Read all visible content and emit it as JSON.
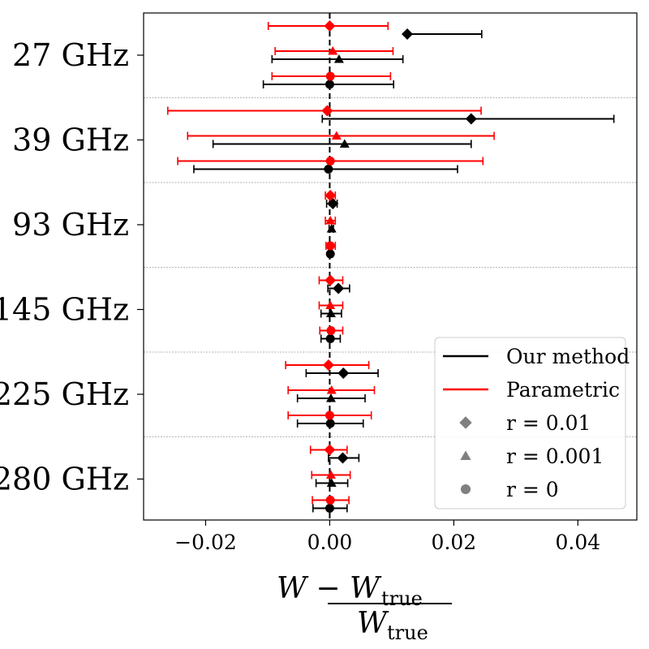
{
  "chart_data": {
    "type": "errorbar",
    "title": "",
    "xlabel": {
      "numerator": "W − W",
      "numerator_sub": "true",
      "denominator": "W",
      "denominator_sub": "true"
    },
    "xlim": [
      -0.03,
      0.0495
    ],
    "xticks": [
      -0.02,
      0.0,
      0.02,
      0.04
    ],
    "xtick_labels": [
      "−0.02",
      "0.00",
      "0.02",
      "0.04"
    ],
    "reference_line_x": 0.0,
    "categories": [
      "27 GHz",
      "39 GHz",
      "93 GHz",
      "145 GHz",
      "225 GHz",
      "280 GHz"
    ],
    "colors": {
      "our_method": "#000000",
      "parametric": "#ff0000",
      "legend_marker": "#808080"
    },
    "series": [
      {
        "name": "Our method",
        "r": "0.01",
        "marker": "diamond",
        "points": [
          {
            "value": 0.0125,
            "err_low": 0.0125,
            "err_high": 0.0245
          },
          {
            "value": 0.0228,
            "err_low": -0.0012,
            "err_high": 0.0458
          },
          {
            "value": 0.0005,
            "err_low": -0.0005,
            "err_high": 0.0012
          },
          {
            "value": 0.0014,
            "err_low": -0.0003,
            "err_high": 0.0032
          },
          {
            "value": 0.0022,
            "err_low": -0.0038,
            "err_high": 0.0078
          },
          {
            "value": 0.0021,
            "err_low": -0.0002,
            "err_high": 0.0047
          }
        ]
      },
      {
        "name": "Our method",
        "r": "0.001",
        "marker": "triangle",
        "points": [
          {
            "value": 0.0015,
            "err_low": -0.0093,
            "err_high": 0.0118
          },
          {
            "value": 0.0024,
            "err_low": -0.0188,
            "err_high": 0.0228
          },
          {
            "value": 0.0003,
            "err_low": -0.0001,
            "err_high": 0.0006
          },
          {
            "value": 0.0002,
            "err_low": -0.0014,
            "err_high": 0.0019
          },
          {
            "value": 0.0002,
            "err_low": -0.0052,
            "err_high": 0.0057
          },
          {
            "value": 0.0003,
            "err_low": -0.0022,
            "err_high": 0.0029
          }
        ]
      },
      {
        "name": "Our method",
        "r": "0",
        "marker": "circle",
        "points": [
          {
            "value": 0.0,
            "err_low": -0.0107,
            "err_high": 0.0103
          },
          {
            "value": -0.0002,
            "err_low": -0.0219,
            "err_high": 0.0206
          },
          {
            "value": 0.0001,
            "err_low": -0.0002,
            "err_high": 0.0004
          },
          {
            "value": 0.0001,
            "err_low": -0.0014,
            "err_high": 0.0017
          },
          {
            "value": 0.0001,
            "err_low": -0.0052,
            "err_high": 0.0054
          },
          {
            "value": 0.0,
            "err_low": -0.0027,
            "err_high": 0.0028
          }
        ]
      },
      {
        "name": "Parametric",
        "r": "0.01",
        "marker": "diamond",
        "points": [
          {
            "value": 0.0,
            "err_low": -0.0099,
            "err_high": 0.0094
          },
          {
            "value": -0.0004,
            "err_low": -0.0261,
            "err_high": 0.0244
          },
          {
            "value": 0.0001,
            "err_low": -0.0007,
            "err_high": 0.0009
          },
          {
            "value": 0.0001,
            "err_low": -0.0017,
            "err_high": 0.0021
          },
          {
            "value": -0.0002,
            "err_low": -0.0071,
            "err_high": 0.0063
          },
          {
            "value": 0.0,
            "err_low": -0.0031,
            "err_high": 0.0028
          }
        ]
      },
      {
        "name": "Parametric",
        "r": "0.001",
        "marker": "triangle",
        "points": [
          {
            "value": 0.0005,
            "err_low": -0.0088,
            "err_high": 0.0102
          },
          {
            "value": 0.0011,
            "err_low": -0.0229,
            "err_high": 0.0265
          },
          {
            "value": 0.0001,
            "err_low": -0.0007,
            "err_high": 0.0009
          },
          {
            "value": 0.0001,
            "err_low": -0.0017,
            "err_high": 0.0021
          },
          {
            "value": 0.0003,
            "err_low": -0.0067,
            "err_high": 0.0072
          },
          {
            "value": 0.0002,
            "err_low": -0.0029,
            "err_high": 0.0033
          }
        ]
      },
      {
        "name": "Parametric",
        "r": "0",
        "marker": "circle",
        "points": [
          {
            "value": 0.0001,
            "err_low": -0.0093,
            "err_high": 0.0098
          },
          {
            "value": 0.0001,
            "err_low": -0.0245,
            "err_high": 0.0247
          },
          {
            "value": 0.0001,
            "err_low": -0.0006,
            "err_high": 0.0009
          },
          {
            "value": 0.0002,
            "err_low": -0.0016,
            "err_high": 0.0021
          },
          {
            "value": 0.0,
            "err_low": -0.0067,
            "err_high": 0.0067
          },
          {
            "value": 0.0001,
            "err_low": -0.0028,
            "err_high": 0.0031
          }
        ]
      }
    ],
    "legend": {
      "position": "lower-right",
      "entries": [
        {
          "label": "Our method",
          "kind": "line",
          "color": "#000000"
        },
        {
          "label": "Parametric",
          "kind": "line",
          "color": "#ff0000"
        },
        {
          "label": "r = 0.01",
          "kind": "diamond",
          "color": "#808080"
        },
        {
          "label": "r = 0.001",
          "kind": "triangle",
          "color": "#808080"
        },
        {
          "label": "r = 0",
          "kind": "circle",
          "color": "#808080"
        }
      ]
    }
  }
}
